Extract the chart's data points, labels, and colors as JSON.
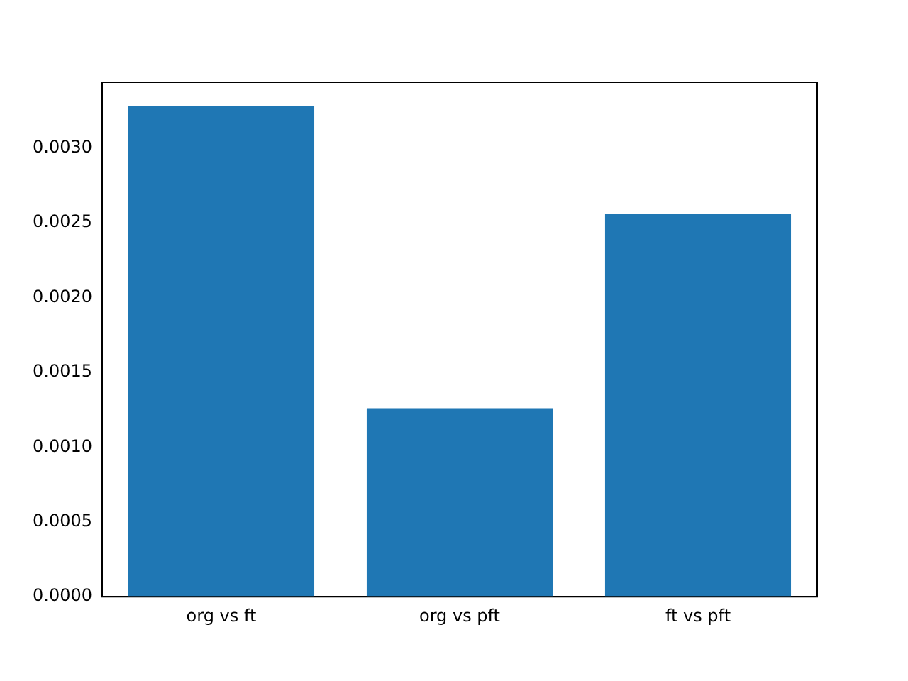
{
  "chart_data": {
    "type": "bar",
    "categories": [
      "org vs ft",
      "org vs pft",
      "ft vs pft"
    ],
    "values": [
      0.00328,
      0.00126,
      0.00256
    ],
    "color": "#1f77b4",
    "ylim": [
      0,
      0.00344
    ],
    "yticks": [
      {
        "value": 0,
        "label": "0.0000"
      },
      {
        "value": 0.0005,
        "label": "0.0005"
      },
      {
        "value": 0.001,
        "label": "0.0010"
      },
      {
        "value": 0.0015,
        "label": "0.0015"
      },
      {
        "value": 0.002,
        "label": "0.0020"
      },
      {
        "value": 0.0025,
        "label": "0.0025"
      },
      {
        "value": 0.003,
        "label": "0.0030"
      }
    ],
    "grid": false,
    "legend": false
  }
}
